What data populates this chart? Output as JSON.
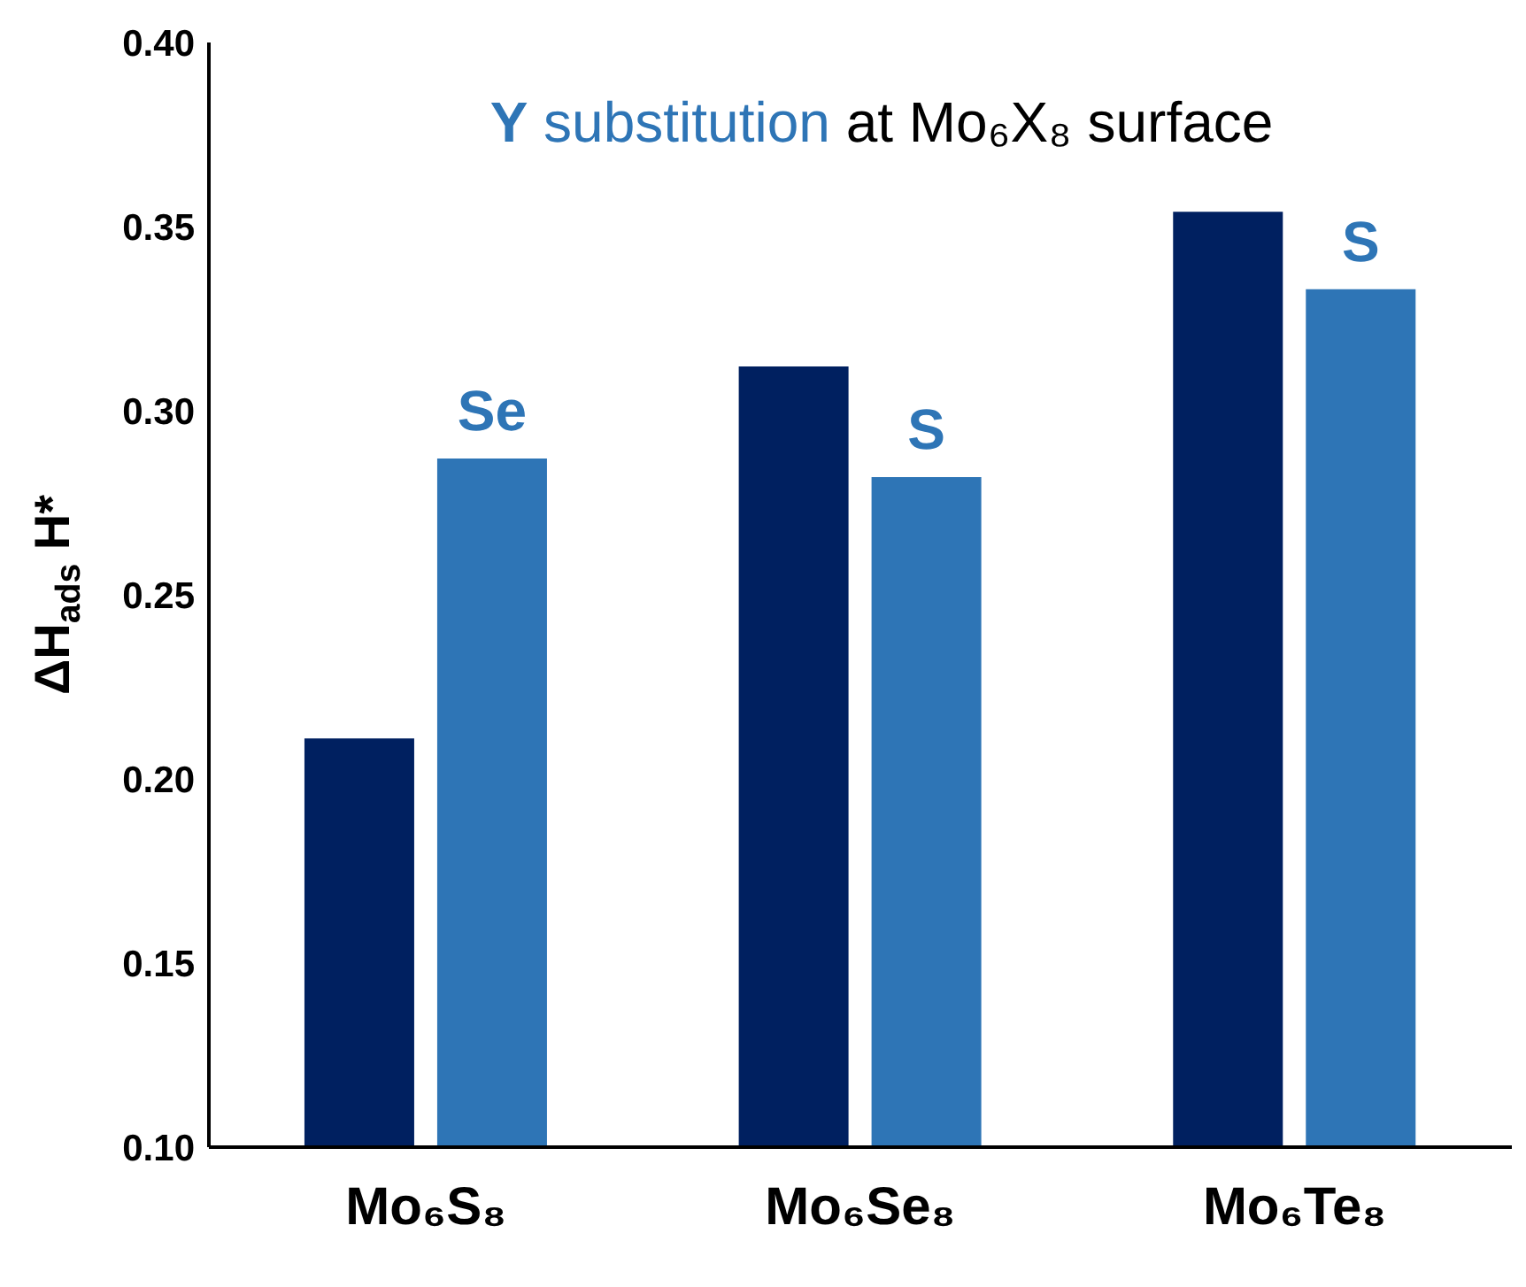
{
  "chart_data": {
    "type": "bar",
    "title": "Y substitution at Mo₆X₈ surface",
    "ylabel": "ΔH$_{ads}$ H*",
    "categories": [
      "Mo₆S₈",
      "Mo₆Se₈",
      "Mo₆Te₈"
    ],
    "series": [
      {
        "color": "#002060",
        "values": [
          0.211,
          0.312,
          0.354
        ]
      },
      {
        "color": "#2e75b6",
        "values": [
          0.287,
          0.282,
          0.333
        ],
        "value_labels": [
          "Se",
          "S",
          "S"
        ]
      }
    ],
    "ylim": [
      0.1,
      0.4
    ],
    "yticks": [
      {
        "value": 0.1,
        "label": "0.10"
      },
      0.15,
      {
        "value": 0.2,
        "label": "0.20"
      },
      0.25,
      {
        "value": 0.3,
        "label": "0.30"
      },
      0.35,
      {
        "value": 0.4,
        "label": "0.40"
      }
    ],
    "grid": false,
    "legend": false
  }
}
